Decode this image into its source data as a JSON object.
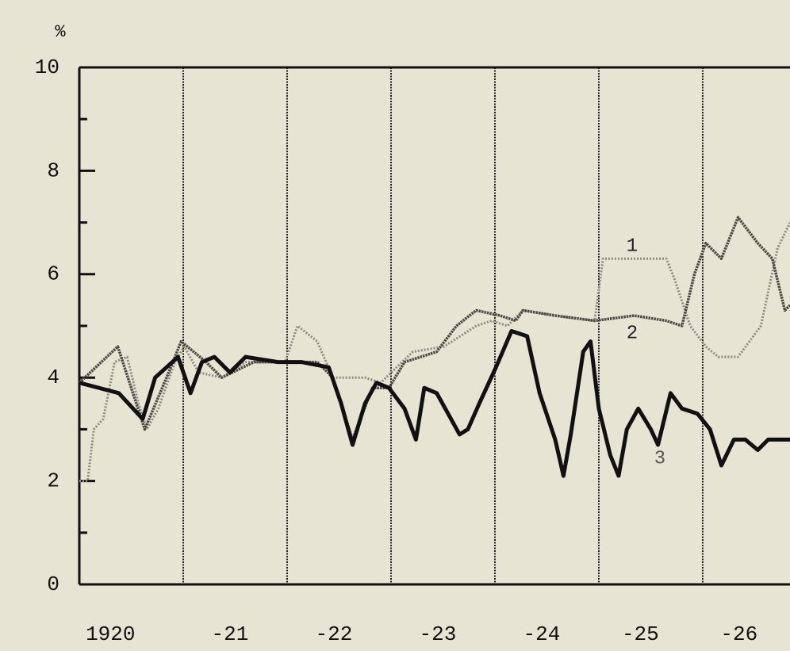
{
  "chart_data": {
    "type": "line",
    "y_unit_label": "%",
    "xlim": [
      1920,
      1926.84
    ],
    "ylim": [
      0,
      10
    ],
    "yticks": [
      0,
      2,
      4,
      6,
      8,
      10
    ],
    "yminor": [
      1,
      3,
      5,
      7,
      9
    ],
    "xticks": [
      {
        "value": 1920.3,
        "label": "1920"
      },
      {
        "value": 1921.45,
        "label": "-21"
      },
      {
        "value": 1922.45,
        "label": "-22"
      },
      {
        "value": 1923.45,
        "label": "-23"
      },
      {
        "value": 1924.45,
        "label": "-24"
      },
      {
        "value": 1925.4,
        "label": "-25"
      },
      {
        "value": 1926.35,
        "label": "-26"
      }
    ],
    "xgrid": [
      1921,
      1922,
      1923,
      1924,
      1925,
      1926
    ],
    "series": [
      {
        "name": "1",
        "color": "#8a8a80",
        "x": [
          1920.0,
          1920.08,
          1920.14,
          1920.23,
          1920.34,
          1920.46,
          1920.57,
          1920.65,
          1920.76,
          1920.92,
          1921.01,
          1921.15,
          1921.37,
          1921.6,
          1921.98,
          1922.1,
          1922.29,
          1922.44,
          1922.75,
          1922.9,
          1923.21,
          1923.51,
          1923.82,
          1923.97,
          1924.12,
          1924.27,
          1924.58,
          1924.96,
          1925.04,
          1925.65,
          1925.73,
          1925.88,
          1926.03,
          1926.15,
          1926.34,
          1926.56,
          1926.72,
          1926.84
        ],
        "values": [
          2.0,
          2.0,
          3.0,
          3.2,
          4.3,
          4.4,
          3.5,
          3.0,
          3.4,
          4.3,
          4.6,
          4.1,
          4.0,
          4.3,
          4.3,
          5.0,
          4.7,
          4.0,
          4.0,
          3.9,
          4.5,
          4.6,
          5.0,
          5.1,
          5.0,
          5.3,
          5.2,
          5.1,
          6.3,
          6.3,
          5.9,
          5.0,
          4.6,
          4.4,
          4.4,
          5.0,
          6.5,
          7.0
        ]
      },
      {
        "name": "2",
        "color": "#4a4a44",
        "x": [
          1920.0,
          1920.37,
          1920.63,
          1920.84,
          1920.98,
          1921.22,
          1921.37,
          1921.68,
          1922.29,
          1922.44,
          1922.63,
          1922.82,
          1922.98,
          1923.13,
          1923.44,
          1923.63,
          1923.82,
          1924.05,
          1924.2,
          1924.27,
          1924.58,
          1924.96,
          1925.34,
          1925.65,
          1925.8,
          1925.92,
          1926.03,
          1926.18,
          1926.34,
          1926.53,
          1926.67,
          1926.79,
          1926.84
        ],
        "values": [
          3.9,
          4.6,
          3.0,
          4.0,
          4.7,
          4.3,
          4.0,
          4.3,
          4.3,
          4.0,
          2.8,
          3.8,
          3.8,
          4.3,
          4.5,
          5.0,
          5.3,
          5.2,
          5.1,
          5.3,
          5.2,
          5.1,
          5.2,
          5.1,
          5.0,
          6.0,
          6.6,
          6.3,
          7.1,
          6.6,
          6.3,
          5.3,
          5.4
        ]
      },
      {
        "name": "3",
        "color": "#111111",
        "x": [
          1920.0,
          1920.38,
          1920.61,
          1920.73,
          1920.84,
          1920.95,
          1921.07,
          1921.18,
          1921.3,
          1921.45,
          1921.6,
          1921.91,
          1922.14,
          1922.4,
          1922.52,
          1922.63,
          1922.75,
          1922.86,
          1922.98,
          1923.13,
          1923.24,
          1923.32,
          1923.44,
          1923.55,
          1923.66,
          1923.74,
          1923.85,
          1924.01,
          1924.16,
          1924.31,
          1924.43,
          1924.58,
          1924.66,
          1924.73,
          1924.85,
          1924.92,
          1925.0,
          1925.11,
          1925.19,
          1925.27,
          1925.38,
          1925.5,
          1925.57,
          1925.69,
          1925.8,
          1925.95,
          1926.07,
          1926.18,
          1926.3,
          1926.41,
          1926.53,
          1926.63,
          1926.84
        ],
        "values": [
          3.9,
          3.7,
          3.2,
          4.0,
          4.2,
          4.4,
          3.7,
          4.3,
          4.4,
          4.1,
          4.4,
          4.3,
          4.3,
          4.2,
          3.5,
          2.7,
          3.5,
          3.9,
          3.8,
          3.4,
          2.8,
          3.8,
          3.7,
          3.3,
          2.9,
          3.0,
          3.5,
          4.2,
          4.9,
          4.8,
          3.7,
          2.8,
          2.1,
          2.9,
          4.5,
          4.7,
          3.4,
          2.5,
          2.1,
          3.0,
          3.4,
          3.0,
          2.7,
          3.7,
          3.4,
          3.3,
          3.0,
          2.3,
          2.8,
          2.8,
          2.6,
          2.8,
          2.8
        ]
      }
    ]
  }
}
